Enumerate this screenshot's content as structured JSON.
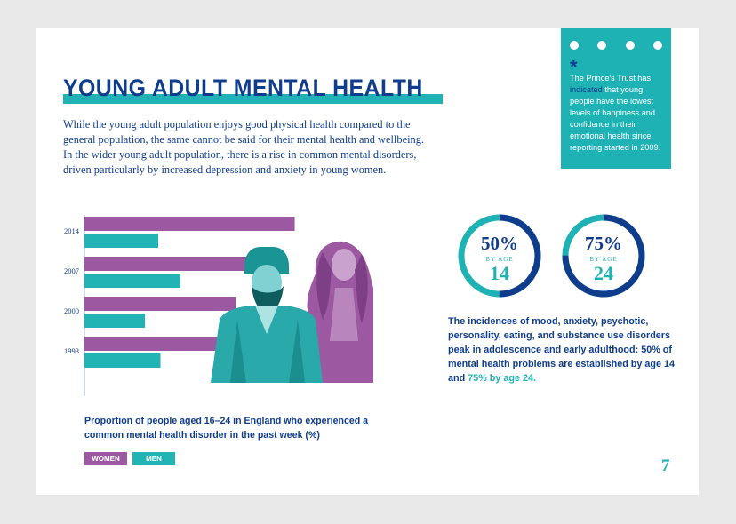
{
  "title": "YOUNG ADULT MENTAL HEALTH",
  "intro": "While the young adult population enjoys good physical health compared to the general population, the same cannot be said for their mental health and wellbeing. In the wider young adult population, there is a rise in common mental disorders, driven particularly by increased depression and anxiety in young women.",
  "callout": {
    "asterisk": "*",
    "text_1": "The Prince's Trust has ",
    "highlight": "indicated",
    "text_2": " that young people have the lowest levels of happiness and confidence in their emotional health since reporting started in 2009."
  },
  "chart_data": {
    "type": "bar",
    "orientation": "horizontal",
    "categories": [
      "2014",
      "2007",
      "2000",
      "1993"
    ],
    "series": [
      {
        "name": "WOMEN",
        "color": "#9c58a1",
        "values": [
          28.5,
          22.5,
          20.5,
          20.5
        ]
      },
      {
        "name": "MEN",
        "color": "#22b3b5",
        "values": [
          10,
          13,
          8.2,
          10.3
        ]
      }
    ],
    "xticks": [
      "0%",
      "5%",
      "10%",
      "15%",
      "20%",
      "25%",
      "30%"
    ],
    "xlim": [
      0,
      30
    ],
    "caption": "Proportion of people aged 16–24 in England who experienced a common mental health disorder in the past week (%)"
  },
  "legend": {
    "women": "WOMEN",
    "men": "MEN"
  },
  "stats": [
    {
      "pct": "50%",
      "by": "BY AGE",
      "age": "14",
      "fraction": 0.5
    },
    {
      "pct": "75%",
      "by": "BY AGE",
      "age": "24",
      "fraction": 0.75
    }
  ],
  "stats_text": {
    "main": "The incidences of mood, anxiety, psychotic, personality, eating, and substance use disorders peak in adolescence and early adulthood: 50% of mental health problems are established by age 14 and ",
    "teal": "75% by age 24."
  },
  "page_number": "7",
  "colors": {
    "navy": "#0f3d8c",
    "teal": "#1fb2b5",
    "purple": "#9c58a1"
  }
}
